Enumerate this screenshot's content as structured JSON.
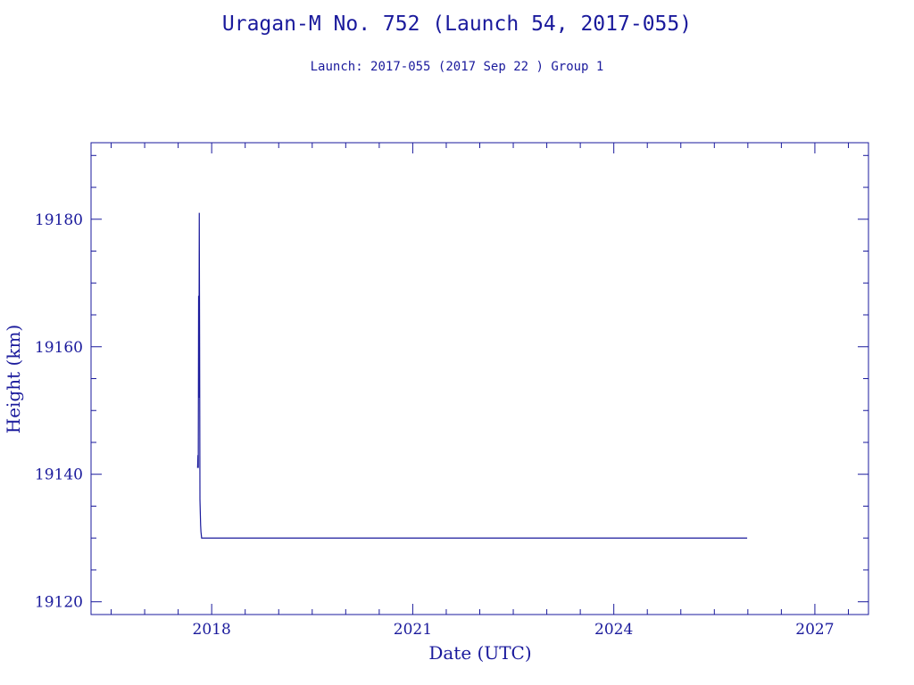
{
  "chart_data": {
    "type": "line",
    "title": "Uragan-M No. 752 (Launch 54, 2017-055)",
    "subtitle": "Launch: 2017-055  (2017 Sep 22 )  Group 1",
    "xlabel": "Date (UTC)",
    "ylabel": "Height (km)",
    "x_unit": "year",
    "xlim": [
      2016.2,
      2027.8
    ],
    "ylim": [
      19118,
      19192
    ],
    "x_ticks": [
      2018,
      2021,
      2024,
      2027
    ],
    "x_tick_labels": [
      "2018",
      "2021",
      "2024",
      "2027"
    ],
    "y_ticks": [
      19120,
      19140,
      19160,
      19180
    ],
    "y_tick_labels": [
      "19120",
      "19140",
      "19160",
      "19180"
    ],
    "x_minor_step": 0.5,
    "y_minor_step": 5,
    "grid": false,
    "color": "#1a1a9c",
    "series": [
      {
        "x": [
          2017.79,
          2017.795,
          2017.8,
          2017.805,
          2017.81,
          2017.815,
          2017.82,
          2017.825,
          2017.83,
          2017.835,
          2017.84,
          2017.85,
          2017.87,
          2017.9,
          2018.0,
          2019.0,
          2020.0,
          2021.0,
          2022.0,
          2023.0,
          2024.0,
          2025.0,
          2025.99
        ],
        "y": [
          19141,
          19143,
          19141,
          19168,
          19152,
          19181,
          19160,
          19136,
          19134,
          19132,
          19131,
          19130,
          19130,
          19130,
          19130,
          19130,
          19130,
          19130,
          19130,
          19130,
          19130,
          19130,
          19130
        ]
      }
    ]
  }
}
